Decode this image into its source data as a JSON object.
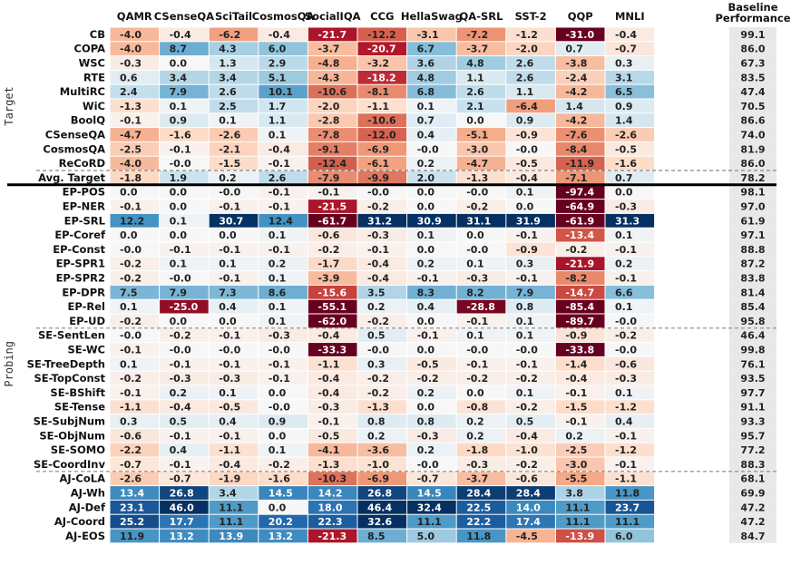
{
  "chart_data": {
    "type": "heatmap",
    "title": "",
    "columns": [
      "QAMR",
      "CSenseQA",
      "SciTail",
      "CosmosQA",
      "SocialIQA",
      "CCG",
      "HellaSwag",
      "QA-SRL",
      "SST-2",
      "QQP",
      "MNLI"
    ],
    "baseline_header": [
      "Baseline",
      "Performance"
    ],
    "groups": [
      {
        "label": "Target",
        "rows": [
          "CB",
          "COPA",
          "WSC",
          "RTE",
          "MultiRC",
          "WiC",
          "BoolQ",
          "CSenseQA",
          "CosmosQA",
          "ReCoRD",
          "Avg. Target"
        ]
      },
      {
        "label": "Probing",
        "rows": [
          "EP-POS",
          "EP-NER",
          "EP-SRL",
          "EP-Coref",
          "EP-Const",
          "EP-SPR1",
          "EP-SPR2",
          "EP-DPR",
          "EP-Rel",
          "EP-UD",
          "SE-SentLen",
          "SE-WC",
          "SE-TreeDepth",
          "SE-TopConst",
          "SE-BShift",
          "SE-Tense",
          "SE-SubjNum",
          "SE-ObjNum",
          "SE-SOMO",
          "SE-CoordInv",
          "AJ-CoLA",
          "AJ-Wh",
          "AJ-Def",
          "AJ-Coord",
          "AJ-EOS"
        ]
      }
    ],
    "rows": [
      {
        "name": "CB",
        "values": [
          "-4.0",
          "-0.4",
          "-6.2",
          "-0.4",
          "-21.7",
          "-12.2",
          "-3.1",
          "-7.2",
          "-1.2",
          "-31.0",
          "-0.4"
        ],
        "baseline": "99.1"
      },
      {
        "name": "COPA",
        "values": [
          "-4.0",
          "8.7",
          "4.3",
          "6.0",
          "-3.7",
          "-20.7",
          "6.7",
          "-3.7",
          "-2.0",
          "0.7",
          "-0.7"
        ],
        "baseline": "86.0"
      },
      {
        "name": "WSC",
        "values": [
          "-0.3",
          "0.0",
          "1.3",
          "2.9",
          "-4.8",
          "-3.2",
          "3.6",
          "4.8",
          "2.6",
          "-3.8",
          "0.3"
        ],
        "baseline": "67.3"
      },
      {
        "name": "RTE",
        "values": [
          "0.6",
          "3.4",
          "3.4",
          "5.1",
          "-4.3",
          "-18.2",
          "4.8",
          "1.1",
          "2.6",
          "-2.4",
          "3.1"
        ],
        "baseline": "83.5"
      },
      {
        "name": "MultiRC",
        "values": [
          "2.4",
          "7.9",
          "2.6",
          "10.1",
          "-10.6",
          "-8.1",
          "6.8",
          "2.6",
          "1.1",
          "-4.2",
          "6.5"
        ],
        "baseline": "47.4"
      },
      {
        "name": "WiC",
        "values": [
          "-1.3",
          "0.1",
          "2.5",
          "1.7",
          "-2.0",
          "-1.1",
          "0.1",
          "2.1",
          "-6.4",
          "1.4",
          "0.9"
        ],
        "baseline": "70.5"
      },
      {
        "name": "BoolQ",
        "values": [
          "-0.1",
          "0.9",
          "0.1",
          "1.1",
          "-2.8",
          "-10.6",
          "0.7",
          "0.0",
          "0.9",
          "-4.2",
          "1.4"
        ],
        "baseline": "86.6"
      },
      {
        "name": "CSenseQA",
        "values": [
          "-4.7",
          "-1.6",
          "-2.6",
          "0.1",
          "-7.8",
          "-12.0",
          "0.4",
          "-5.1",
          "-0.9",
          "-7.6",
          "-2.6"
        ],
        "baseline": "74.0"
      },
      {
        "name": "CosmosQA",
        "values": [
          "-2.5",
          "-0.1",
          "-2.1",
          "-0.4",
          "-9.1",
          "-6.9",
          "-0.0",
          "-3.0",
          "-0.0",
          "-8.4",
          "-0.5"
        ],
        "baseline": "81.9"
      },
      {
        "name": "ReCoRD",
        "values": [
          "-4.0",
          "-0.0",
          "-1.5",
          "-0.1",
          "-12.4",
          "-6.1",
          "0.2",
          "-4.7",
          "-0.5",
          "-11.9",
          "-1.6"
        ],
        "baseline": "86.0"
      },
      {
        "name": "Avg. Target",
        "values": [
          "-1.8",
          "1.9",
          "0.2",
          "2.6",
          "-7.9",
          "-9.9",
          "2.0",
          "-1.3",
          "-0.4",
          "-7.1",
          "0.7"
        ],
        "baseline": "78.2"
      },
      {
        "name": "EP-POS",
        "values": [
          "0.0",
          "0.0",
          "-0.0",
          "-0.1",
          "-0.1",
          "-0.0",
          "0.0",
          "-0.0",
          "0.1",
          "-97.4",
          "0.0"
        ],
        "baseline": "98.1"
      },
      {
        "name": "EP-NER",
        "values": [
          "-0.1",
          "0.0",
          "-0.1",
          "-0.1",
          "-21.5",
          "-0.2",
          "0.0",
          "-0.2",
          "0.0",
          "-64.9",
          "-0.3"
        ],
        "baseline": "97.0"
      },
      {
        "name": "EP-SRL",
        "values": [
          "12.2",
          "0.1",
          "30.7",
          "12.4",
          "-61.7",
          "31.2",
          "30.9",
          "31.1",
          "31.9",
          "-61.9",
          "31.3"
        ],
        "baseline": "61.9"
      },
      {
        "name": "EP-Coref",
        "values": [
          "0.0",
          "0.0",
          "0.0",
          "0.1",
          "-0.6",
          "-0.3",
          "0.1",
          "0.0",
          "-0.1",
          "-13.4",
          "0.1"
        ],
        "baseline": "97.1"
      },
      {
        "name": "EP-Const",
        "values": [
          "-0.0",
          "-0.1",
          "-0.1",
          "-0.1",
          "-0.2",
          "-0.1",
          "0.0",
          "-0.0",
          "-0.9",
          "-0.2",
          "-0.1"
        ],
        "baseline": "88.8"
      },
      {
        "name": "EP-SPR1",
        "values": [
          "-0.2",
          "0.1",
          "0.1",
          "0.2",
          "-1.7",
          "-0.4",
          "0.2",
          "0.1",
          "0.3",
          "-21.9",
          "0.2"
        ],
        "baseline": "87.2"
      },
      {
        "name": "EP-SPR2",
        "values": [
          "-0.2",
          "-0.0",
          "-0.1",
          "0.1",
          "-3.9",
          "-0.4",
          "-0.1",
          "-0.3",
          "-0.1",
          "-8.2",
          "-0.1"
        ],
        "baseline": "83.8"
      },
      {
        "name": "EP-DPR",
        "values": [
          "7.5",
          "7.9",
          "7.3",
          "8.6",
          "-15.6",
          "3.5",
          "8.3",
          "8.2",
          "7.9",
          "-14.7",
          "6.6"
        ],
        "baseline": "81.4"
      },
      {
        "name": "EP-Rel",
        "values": [
          "0.1",
          "-25.0",
          "0.4",
          "0.1",
          "-55.1",
          "0.2",
          "0.4",
          "-28.8",
          "0.8",
          "-85.4",
          "0.1"
        ],
        "baseline": "85.4"
      },
      {
        "name": "EP-UD",
        "values": [
          "-0.2",
          "0.0",
          "0.0",
          "0.1",
          "-62.0",
          "-0.2",
          "0.0",
          "-0.1",
          "0.1",
          "-89.7",
          "-0.0"
        ],
        "baseline": "95.8"
      },
      {
        "name": "SE-SentLen",
        "values": [
          "-0.0",
          "-0.2",
          "-0.1",
          "-0.3",
          "-0.4",
          "0.5",
          "-0.1",
          "0.1",
          "0.1",
          "-0.9",
          "-0.2"
        ],
        "baseline": "46.4"
      },
      {
        "name": "SE-WC",
        "values": [
          "-0.1",
          "-0.0",
          "-0.0",
          "-0.0",
          "-33.3",
          "-0.0",
          "0.0",
          "-0.0",
          "-0.0",
          "-33.8",
          "-0.0"
        ],
        "baseline": "99.8"
      },
      {
        "name": "SE-TreeDepth",
        "values": [
          "0.1",
          "-0.1",
          "-0.1",
          "-0.1",
          "-1.1",
          "0.3",
          "-0.5",
          "-0.1",
          "-0.1",
          "-1.4",
          "-0.6"
        ],
        "baseline": "76.1"
      },
      {
        "name": "SE-TopConst",
        "values": [
          "-0.2",
          "-0.3",
          "-0.3",
          "-0.1",
          "-0.4",
          "-0.2",
          "-0.2",
          "-0.2",
          "-0.2",
          "-0.4",
          "-0.3"
        ],
        "baseline": "93.5"
      },
      {
        "name": "SE-BShift",
        "values": [
          "-0.1",
          "0.2",
          "0.1",
          "0.0",
          "-0.4",
          "-0.2",
          "0.2",
          "0.0",
          "0.1",
          "-0.1",
          "0.1"
        ],
        "baseline": "97.7"
      },
      {
        "name": "SE-Tense",
        "values": [
          "-1.1",
          "-0.4",
          "-0.5",
          "-0.0",
          "-0.3",
          "-1.3",
          "0.0",
          "-0.8",
          "-0.2",
          "-1.5",
          "-1.2"
        ],
        "baseline": "91.1"
      },
      {
        "name": "SE-SubjNum",
        "values": [
          "0.3",
          "0.5",
          "0.4",
          "0.9",
          "-0.1",
          "0.8",
          "0.8",
          "0.2",
          "0.5",
          "-0.1",
          "0.4"
        ],
        "baseline": "93.3"
      },
      {
        "name": "SE-ObjNum",
        "values": [
          "-0.6",
          "-0.1",
          "-0.1",
          "0.0",
          "-0.5",
          "0.2",
          "-0.3",
          "0.2",
          "-0.4",
          "0.2",
          "-0.1"
        ],
        "baseline": "95.7"
      },
      {
        "name": "SE-SOMO",
        "values": [
          "-2.2",
          "0.4",
          "-1.1",
          "0.1",
          "-4.1",
          "-3.6",
          "0.2",
          "-1.8",
          "-1.0",
          "-2.5",
          "-1.2"
        ],
        "baseline": "77.2"
      },
      {
        "name": "SE-CoordInv",
        "values": [
          "-0.7",
          "-0.1",
          "-0.4",
          "-0.2",
          "-1.3",
          "-1.0",
          "-0.0",
          "-0.3",
          "-0.2",
          "-3.0",
          "-0.1"
        ],
        "baseline": "88.3"
      },
      {
        "name": "AJ-CoLA",
        "values": [
          "-2.6",
          "-0.7",
          "-1.9",
          "-1.6",
          "-10.3",
          "-6.9",
          "-0.7",
          "-3.7",
          "-0.6",
          "-5.5",
          "-1.1"
        ],
        "baseline": "68.1"
      },
      {
        "name": "AJ-Wh",
        "values": [
          "13.4",
          "26.8",
          "3.4",
          "14.5",
          "14.2",
          "26.8",
          "14.5",
          "28.4",
          "28.4",
          "3.8",
          "11.8"
        ],
        "baseline": "69.9"
      },
      {
        "name": "AJ-Def",
        "values": [
          "23.1",
          "46.0",
          "11.1",
          "0.0",
          "18.0",
          "46.4",
          "32.4",
          "22.5",
          "14.0",
          "11.1",
          "23.7"
        ],
        "baseline": "47.2"
      },
      {
        "name": "AJ-Coord",
        "values": [
          "25.2",
          "17.7",
          "11.1",
          "20.2",
          "22.3",
          "32.6",
          "11.1",
          "22.2",
          "17.4",
          "11.1",
          "11.1"
        ],
        "baseline": "47.2"
      },
      {
        "name": "AJ-EOS",
        "values": [
          "11.9",
          "13.2",
          "13.9",
          "13.2",
          "-21.3",
          "8.5",
          "5.0",
          "11.8",
          "-4.5",
          "-13.9",
          "6.0"
        ],
        "baseline": "84.7"
      }
    ],
    "separators": [
      {
        "after": "ReCoRD",
        "style": "dashed"
      },
      {
        "after": "Avg. Target",
        "style": "solid-thick"
      },
      {
        "after": "EP-UD",
        "style": "dashed"
      },
      {
        "after": "SE-CoordInv",
        "style": "dashed"
      }
    ],
    "colors": {
      "positive_max": "#053061",
      "negative_max": "#67001f",
      "neutral": "#f7f7f7",
      "baseline_bg": "#e8e8e8"
    }
  }
}
